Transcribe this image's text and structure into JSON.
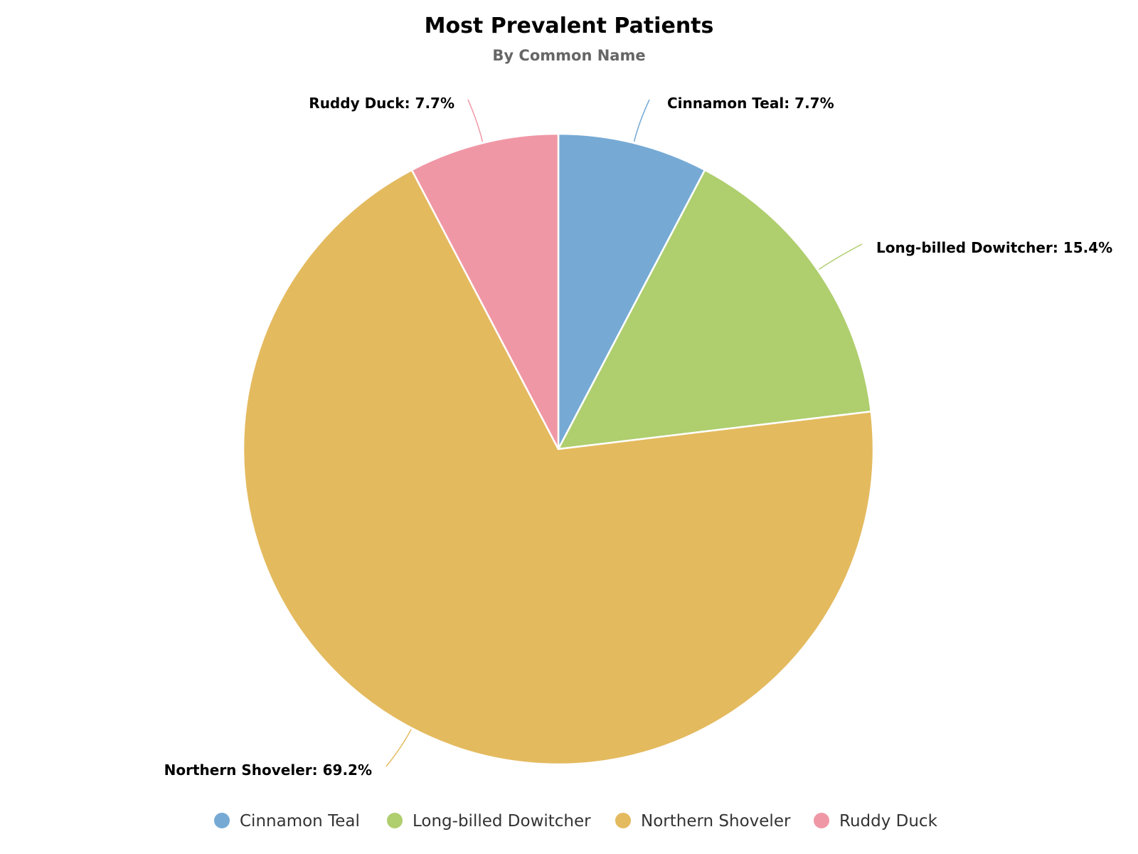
{
  "chart_data": {
    "type": "pie",
    "title": "Most Prevalent Patients",
    "subtitle": "By Common Name",
    "slices": [
      {
        "name": "Cinnamon Teal",
        "value": 7.7,
        "label": "Cinnamon Teal: 7.7%",
        "color": "#76AAD5"
      },
      {
        "name": "Long-billed Dowitcher",
        "value": 15.4,
        "label": "Long-billed Dowitcher: 15.4%",
        "color": "#AFCE6E"
      },
      {
        "name": "Northern Shoveler",
        "value": 69.2,
        "label": "Northern Shoveler: 69.2%",
        "color": "#E4BA5F"
      },
      {
        "name": "Ruddy Duck",
        "value": 7.7,
        "label": "Ruddy Duck: 7.7%",
        "color": "#F097A6"
      }
    ],
    "legend_position": "bottom",
    "start_angle": "12 o'clock, clockwise"
  }
}
